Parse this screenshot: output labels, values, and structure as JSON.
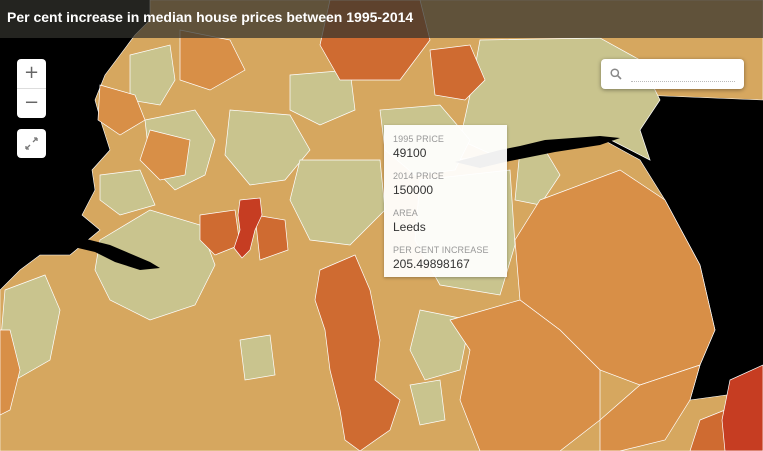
{
  "map": {
    "title": "Per cent increase in median house prices between 1995-2014",
    "colors": {
      "sea": "#000000",
      "very_low": "#c9c48e",
      "low": "#d6a75f",
      "medium": "#d88f47",
      "high": "#cf6b31",
      "very_high": "#c63d22",
      "borders": "#ffffff"
    }
  },
  "controls": {
    "zoom_in": "+",
    "zoom_out": "−",
    "fullscreen_icon": "expand-icon"
  },
  "search": {
    "icon": "search-icon",
    "value": "",
    "placeholder": ""
  },
  "popup": {
    "area_name": "Leeds",
    "fields": [
      {
        "label": "1995 PRICE",
        "value": "49100"
      },
      {
        "label": "2014 PRICE",
        "value": "150000"
      },
      {
        "label": "AREA",
        "value": "Leeds"
      },
      {
        "label": "PER CENT INCREASE",
        "value": "205.49898167"
      }
    ]
  }
}
